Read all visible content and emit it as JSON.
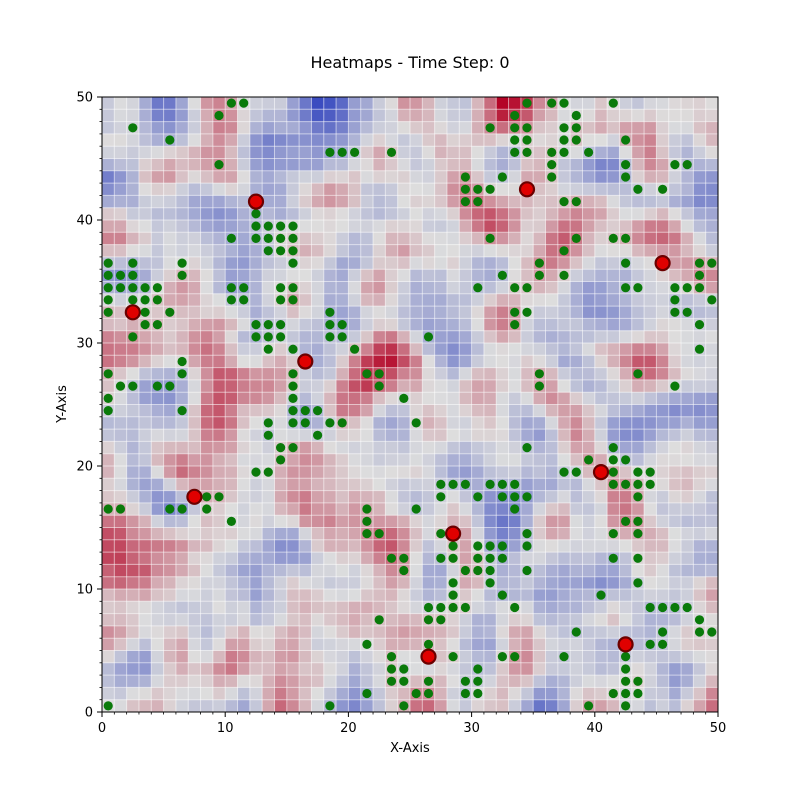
{
  "chart_data": {
    "type": "heatmap",
    "title": "Heatmaps - Time Step: 0",
    "xlabel": "X-Axis",
    "ylabel": "Y-Axis",
    "xlim": [
      0,
      50
    ],
    "ylim": [
      0,
      50
    ],
    "x_ticks": [
      "0",
      "10",
      "20",
      "30",
      "40",
      "50"
    ],
    "y_ticks": [
      "0",
      "10",
      "20",
      "30",
      "40",
      "50"
    ],
    "colormap": "coolwarm",
    "grid_resolution": 50,
    "grid_lines": "white cell grid overlay",
    "colors": {
      "low": "#3b4cc0",
      "mid": "#dddddd",
      "high": "#b40426",
      "green_marker": "#0a7a0a",
      "red_marker": "#e00000",
      "red_marker_edge": "#6b0000"
    },
    "red_points": [
      {
        "x": 12.5,
        "y": 41.5
      },
      {
        "x": 34.5,
        "y": 42.5
      },
      {
        "x": 45.5,
        "y": 36.5
      },
      {
        "x": 2.5,
        "y": 32.5
      },
      {
        "x": 16.5,
        "y": 28.5
      },
      {
        "x": 7.5,
        "y": 17.5
      },
      {
        "x": 40.5,
        "y": 19.5
      },
      {
        "x": 28.5,
        "y": 14.5
      },
      {
        "x": 26.5,
        "y": 4.5
      },
      {
        "x": 42.5,
        "y": 5.5
      }
    ],
    "green_points": [
      [
        10.5,
        49.5
      ],
      [
        11.5,
        49.5
      ],
      [
        9.5,
        48.5
      ],
      [
        2.5,
        47.5
      ],
      [
        5.5,
        46.5
      ],
      [
        9.5,
        44.5
      ],
      [
        18.5,
        45.5
      ],
      [
        19.5,
        45.5
      ],
      [
        20.5,
        45.5
      ],
      [
        23.5,
        45.5
      ],
      [
        29.5,
        43.5
      ],
      [
        29.5,
        42.5
      ],
      [
        30.5,
        42.5
      ],
      [
        29.5,
        41.5
      ],
      [
        30.5,
        41.5
      ],
      [
        31.5,
        47.5
      ],
      [
        33.5,
        48.5
      ],
      [
        33.5,
        47.5
      ],
      [
        34.5,
        47.5
      ],
      [
        33.5,
        46.5
      ],
      [
        34.5,
        46.5
      ],
      [
        33.5,
        45.5
      ],
      [
        34.5,
        45.5
      ],
      [
        34.5,
        49.5
      ],
      [
        32.5,
        43.5
      ],
      [
        31.5,
        42.5
      ],
      [
        31.5,
        38.5
      ],
      [
        36.5,
        49.5
      ],
      [
        37.5,
        49.5
      ],
      [
        38.5,
        48.5
      ],
      [
        37.5,
        47.5
      ],
      [
        38.5,
        47.5
      ],
      [
        37.5,
        46.5
      ],
      [
        38.5,
        46.5
      ],
      [
        36.5,
        45.5
      ],
      [
        37.5,
        45.5
      ],
      [
        39.5,
        45.5
      ],
      [
        36.5,
        44.5
      ],
      [
        36.5,
        43.5
      ],
      [
        37.5,
        41.5
      ],
      [
        38.5,
        41.5
      ],
      [
        41.5,
        49.5
      ],
      [
        42.5,
        46.5
      ],
      [
        42.5,
        44.5
      ],
      [
        42.5,
        43.5
      ],
      [
        43.5,
        42.5
      ],
      [
        45.5,
        42.5
      ],
      [
        46.5,
        44.5
      ],
      [
        47.5,
        44.5
      ],
      [
        41.5,
        38.5
      ],
      [
        42.5,
        38.5
      ],
      [
        42.5,
        36.5
      ],
      [
        38.5,
        38.5
      ],
      [
        37.5,
        37.5
      ],
      [
        37.5,
        35.5
      ],
      [
        35.5,
        36.5
      ],
      [
        35.5,
        35.5
      ],
      [
        12.5,
        40.5
      ],
      [
        13.5,
        39.5
      ],
      [
        12.5,
        39.5
      ],
      [
        14.5,
        39.5
      ],
      [
        15.5,
        39.5
      ],
      [
        12.5,
        38.5
      ],
      [
        13.5,
        38.5
      ],
      [
        14.5,
        38.5
      ],
      [
        15.5,
        38.5
      ],
      [
        10.5,
        38.5
      ],
      [
        13.5,
        37.5
      ],
      [
        14.5,
        37.5
      ],
      [
        15.5,
        37.5
      ],
      [
        15.5,
        36.5
      ],
      [
        0.5,
        36.5
      ],
      [
        2.5,
        36.5
      ],
      [
        6.5,
        36.5
      ],
      [
        0.5,
        35.5
      ],
      [
        1.5,
        35.5
      ],
      [
        2.5,
        35.5
      ],
      [
        6.5,
        35.5
      ],
      [
        0.5,
        34.5
      ],
      [
        1.5,
        34.5
      ],
      [
        2.5,
        34.5
      ],
      [
        3.5,
        34.5
      ],
      [
        4.5,
        34.5
      ],
      [
        0.5,
        33.5
      ],
      [
        2.5,
        33.5
      ],
      [
        3.5,
        33.5
      ],
      [
        4.5,
        33.5
      ],
      [
        0.5,
        32.5
      ],
      [
        3.5,
        32.5
      ],
      [
        5.5,
        32.5
      ],
      [
        3.5,
        31.5
      ],
      [
        4.5,
        31.5
      ],
      [
        2.5,
        30.5
      ],
      [
        10.5,
        34.5
      ],
      [
        11.5,
        34.5
      ],
      [
        10.5,
        33.5
      ],
      [
        11.5,
        33.5
      ],
      [
        14.5,
        34.5
      ],
      [
        15.5,
        34.5
      ],
      [
        14.5,
        33.5
      ],
      [
        15.5,
        33.5
      ],
      [
        12.5,
        31.5
      ],
      [
        13.5,
        31.5
      ],
      [
        14.5,
        31.5
      ],
      [
        12.5,
        30.5
      ],
      [
        13.5,
        30.5
      ],
      [
        14.5,
        30.5
      ],
      [
        13.5,
        29.5
      ],
      [
        15.5,
        29.5
      ],
      [
        18.5,
        32.5
      ],
      [
        18.5,
        31.5
      ],
      [
        19.5,
        31.5
      ],
      [
        18.5,
        30.5
      ],
      [
        19.5,
        30.5
      ],
      [
        20.5,
        29.5
      ],
      [
        0.5,
        27.5
      ],
      [
        6.5,
        28.5
      ],
      [
        6.5,
        27.5
      ],
      [
        1.5,
        26.5
      ],
      [
        2.5,
        26.5
      ],
      [
        4.5,
        26.5
      ],
      [
        5.5,
        26.5
      ],
      [
        0.5,
        25.5
      ],
      [
        0.5,
        24.5
      ],
      [
        6.5,
        24.5
      ],
      [
        15.5,
        27.5
      ],
      [
        15.5,
        26.5
      ],
      [
        15.5,
        25.5
      ],
      [
        15.5,
        24.5
      ],
      [
        16.5,
        24.5
      ],
      [
        17.5,
        24.5
      ],
      [
        13.5,
        23.5
      ],
      [
        15.5,
        23.5
      ],
      [
        16.5,
        23.5
      ],
      [
        18.5,
        23.5
      ],
      [
        19.5,
        23.5
      ],
      [
        13.5,
        22.5
      ],
      [
        17.5,
        22.5
      ],
      [
        14.5,
        21.5
      ],
      [
        15.5,
        21.5
      ],
      [
        14.5,
        20.5
      ],
      [
        12.5,
        19.5
      ],
      [
        13.5,
        19.5
      ],
      [
        21.5,
        27.5
      ],
      [
        22.5,
        27.5
      ],
      [
        22.5,
        26.5
      ],
      [
        24.5,
        25.5
      ],
      [
        26.5,
        30.5
      ],
      [
        25.5,
        23.5
      ],
      [
        30.5,
        34.5
      ],
      [
        33.5,
        34.5
      ],
      [
        34.5,
        34.5
      ],
      [
        32.5,
        35.5
      ],
      [
        33.5,
        32.5
      ],
      [
        34.5,
        32.5
      ],
      [
        33.5,
        31.5
      ],
      [
        35.5,
        27.5
      ],
      [
        35.5,
        26.5
      ],
      [
        27.5,
        18.5
      ],
      [
        28.5,
        18.5
      ],
      [
        29.5,
        18.5
      ],
      [
        27.5,
        17.5
      ],
      [
        30.5,
        17.5
      ],
      [
        31.5,
        18.5
      ],
      [
        32.5,
        18.5
      ],
      [
        33.5,
        18.5
      ],
      [
        32.5,
        17.5
      ],
      [
        33.5,
        17.5
      ],
      [
        34.5,
        17.5
      ],
      [
        33.5,
        16.5
      ],
      [
        34.5,
        21.5
      ],
      [
        8.5,
        17.5
      ],
      [
        9.5,
        17.5
      ],
      [
        8.5,
        16.5
      ],
      [
        10.5,
        15.5
      ],
      [
        0.5,
        16.5
      ],
      [
        1.5,
        16.5
      ],
      [
        5.5,
        16.5
      ],
      [
        6.5,
        16.5
      ],
      [
        21.5,
        16.5
      ],
      [
        21.5,
        15.5
      ],
      [
        21.5,
        14.5
      ],
      [
        22.5,
        14.5
      ],
      [
        25.5,
        16.5
      ],
      [
        23.5,
        12.5
      ],
      [
        24.5,
        12.5
      ],
      [
        24.5,
        11.5
      ],
      [
        22.5,
        7.5
      ],
      [
        21.5,
        5.5
      ],
      [
        21.5,
        1.5
      ],
      [
        27.5,
        14.5
      ],
      [
        28.5,
        13.5
      ],
      [
        27.5,
        12.5
      ],
      [
        28.5,
        12.5
      ],
      [
        30.5,
        13.5
      ],
      [
        31.5,
        13.5
      ],
      [
        32.5,
        13.5
      ],
      [
        30.5,
        12.5
      ],
      [
        31.5,
        12.5
      ],
      [
        32.5,
        12.5
      ],
      [
        29.5,
        11.5
      ],
      [
        30.5,
        11.5
      ],
      [
        31.5,
        11.5
      ],
      [
        31.5,
        10.5
      ],
      [
        28.5,
        10.5
      ],
      [
        28.5,
        9.5
      ],
      [
        28.5,
        8.5
      ],
      [
        29.5,
        8.5
      ],
      [
        27.5,
        8.5
      ],
      [
        26.5,
        8.5
      ],
      [
        27.5,
        7.5
      ],
      [
        26.5,
        7.5
      ],
      [
        26.5,
        5.5
      ],
      [
        32.5,
        9.5
      ],
      [
        33.5,
        8.5
      ],
      [
        34.5,
        14.5
      ],
      [
        34.5,
        13.5
      ],
      [
        34.5,
        11.5
      ],
      [
        28.5,
        4.5
      ],
      [
        32.5,
        4.5
      ],
      [
        33.5,
        4.5
      ],
      [
        30.5,
        3.5
      ],
      [
        30.5,
        2.5
      ],
      [
        29.5,
        2.5
      ],
      [
        30.5,
        1.5
      ],
      [
        29.5,
        1.5
      ],
      [
        23.5,
        4.5
      ],
      [
        23.5,
        3.5
      ],
      [
        24.5,
        3.5
      ],
      [
        23.5,
        2.5
      ],
      [
        24.5,
        2.5
      ],
      [
        25.5,
        1.5
      ],
      [
        26.5,
        2.5
      ],
      [
        26.5,
        1.5
      ],
      [
        24.5,
        0.5
      ],
      [
        37.5,
        19.5
      ],
      [
        38.5,
        19.5
      ],
      [
        39.5,
        20.5
      ],
      [
        41.5,
        21.5
      ],
      [
        41.5,
        20.5
      ],
      [
        42.5,
        20.5
      ],
      [
        41.5,
        19.5
      ],
      [
        43.5,
        19.5
      ],
      [
        44.5,
        19.5
      ],
      [
        41.5,
        18.5
      ],
      [
        42.5,
        18.5
      ],
      [
        43.5,
        18.5
      ],
      [
        44.5,
        18.5
      ],
      [
        43.5,
        17.5
      ],
      [
        42.5,
        15.5
      ],
      [
        43.5,
        15.5
      ],
      [
        41.5,
        14.5
      ],
      [
        43.5,
        14.5
      ],
      [
        41.5,
        12.5
      ],
      [
        43.5,
        12.5
      ],
      [
        43.5,
        10.5
      ],
      [
        40.5,
        9.5
      ],
      [
        44.5,
        8.5
      ],
      [
        45.5,
        8.5
      ],
      [
        46.5,
        8.5
      ],
      [
        47.5,
        8.5
      ],
      [
        48.5,
        7.5
      ],
      [
        48.5,
        6.5
      ],
      [
        49.5,
        6.5
      ],
      [
        45.5,
        6.5
      ],
      [
        44.5,
        5.5
      ],
      [
        45.5,
        5.5
      ],
      [
        38.5,
        6.5
      ],
      [
        37.5,
        4.5
      ],
      [
        42.5,
        4.5
      ],
      [
        42.5,
        3.5
      ],
      [
        42.5,
        2.5
      ],
      [
        43.5,
        2.5
      ],
      [
        41.5,
        1.5
      ],
      [
        42.5,
        1.5
      ],
      [
        43.5,
        1.5
      ],
      [
        39.5,
        0.5
      ],
      [
        42.5,
        0.5
      ],
      [
        46.5,
        34.5
      ],
      [
        47.5,
        34.5
      ],
      [
        46.5,
        33.5
      ],
      [
        46.5,
        32.5
      ],
      [
        47.5,
        32.5
      ],
      [
        48.5,
        35.5
      ],
      [
        48.5,
        36.5
      ],
      [
        49.5,
        36.5
      ],
      [
        48.5,
        34.5
      ],
      [
        49.5,
        33.5
      ],
      [
        48.5,
        31.5
      ],
      [
        48.5,
        29.5
      ],
      [
        43.5,
        27.5
      ],
      [
        46.5,
        26.5
      ],
      [
        42.5,
        34.5
      ],
      [
        43.5,
        34.5
      ],
      [
        18.5,
        0.5
      ],
      [
        0.5,
        0.5
      ]
    ]
  }
}
